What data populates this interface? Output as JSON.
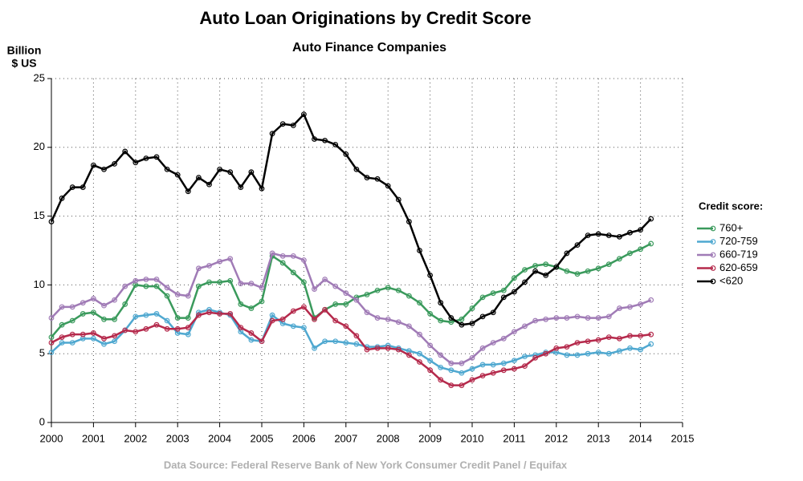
{
  "chart_data": {
    "type": "line",
    "title": "Auto Loan Originations by Credit Score",
    "subtitle": "Auto Finance Companies",
    "y_label": [
      "Billion",
      "$ US"
    ],
    "source": "Data Source: Federal Reserve Bank of New York Consumer Credit Panel / Equifax",
    "legend_title": "Credit score:",
    "legend": "right",
    "grid": true,
    "x": [
      2000,
      2000.25,
      2000.5,
      2000.75,
      2001,
      2001.25,
      2001.5,
      2001.75,
      2002,
      2002.25,
      2002.5,
      2002.75,
      2003,
      2003.25,
      2003.5,
      2003.75,
      2004,
      2004.25,
      2004.5,
      2004.75,
      2005,
      2005.25,
      2005.5,
      2005.75,
      2006,
      2006.25,
      2006.5,
      2006.75,
      2007,
      2007.25,
      2007.5,
      2007.75,
      2008,
      2008.25,
      2008.5,
      2008.75,
      2009,
      2009.25,
      2009.5,
      2009.75,
      2010,
      2010.25,
      2010.5,
      2010.75,
      2011,
      2011.25,
      2011.5,
      2011.75,
      2012,
      2012.25,
      2012.5,
      2012.75,
      2013,
      2013.25,
      2013.5,
      2013.75,
      2014,
      2014.25
    ],
    "xlim": [
      2000,
      2015
    ],
    "xticks": [
      2000,
      2001,
      2002,
      2003,
      2004,
      2005,
      2006,
      2007,
      2008,
      2009,
      2010,
      2011,
      2012,
      2013,
      2014,
      2015
    ],
    "ylim": [
      0,
      25
    ],
    "yticks": [
      0,
      5,
      10,
      15,
      20,
      25
    ],
    "series": [
      {
        "name": "760+",
        "color": "#3a9a5c",
        "values": [
          6.2,
          7.1,
          7.4,
          7.9,
          8.0,
          7.5,
          7.5,
          8.6,
          10.0,
          9.9,
          9.9,
          9.2,
          7.6,
          7.6,
          9.9,
          10.2,
          10.2,
          10.3,
          8.6,
          8.3,
          8.8,
          12.1,
          11.6,
          10.9,
          10.2,
          7.6,
          8.2,
          8.6,
          8.6,
          9.1,
          9.3,
          9.6,
          9.8,
          9.6,
          9.2,
          8.7,
          7.9,
          7.4,
          7.3,
          7.5,
          8.3,
          9.1,
          9.4,
          9.6,
          10.5,
          11.1,
          11.4,
          11.5,
          11.3,
          11.0,
          10.8,
          11.0,
          11.2,
          11.5,
          11.9,
          12.3,
          12.6,
          13.0
        ]
      },
      {
        "name": "720-759",
        "color": "#4fa8d0",
        "values": [
          5.1,
          5.8,
          5.8,
          6.1,
          6.1,
          5.7,
          5.9,
          6.7,
          7.7,
          7.8,
          7.9,
          7.4,
          6.5,
          6.4,
          8.0,
          8.2,
          8.0,
          7.8,
          6.6,
          6.0,
          5.9,
          7.8,
          7.2,
          7.0,
          6.9,
          5.4,
          5.9,
          5.9,
          5.8,
          5.7,
          5.5,
          5.5,
          5.6,
          5.4,
          5.2,
          5.0,
          4.5,
          4.0,
          3.8,
          3.6,
          3.9,
          4.2,
          4.2,
          4.3,
          4.5,
          4.8,
          4.9,
          5.1,
          5.1,
          4.9,
          4.9,
          5.0,
          5.1,
          5.0,
          5.2,
          5.4,
          5.3,
          5.7
        ]
      },
      {
        "name": "660-719",
        "color": "#a07bb6",
        "values": [
          7.6,
          8.4,
          8.4,
          8.7,
          9.0,
          8.5,
          8.9,
          9.9,
          10.3,
          10.4,
          10.4,
          9.8,
          9.3,
          9.2,
          11.2,
          11.4,
          11.7,
          11.9,
          10.1,
          10.1,
          9.8,
          12.3,
          12.1,
          12.1,
          11.8,
          9.7,
          10.4,
          9.9,
          9.4,
          8.9,
          8.0,
          7.6,
          7.5,
          7.3,
          7.0,
          6.4,
          5.6,
          4.9,
          4.3,
          4.3,
          4.7,
          5.4,
          5.8,
          6.1,
          6.6,
          7.0,
          7.4,
          7.5,
          7.6,
          7.6,
          7.7,
          7.6,
          7.6,
          7.7,
          8.3,
          8.4,
          8.6,
          8.9
        ]
      },
      {
        "name": "620-659",
        "color": "#b52a4c",
        "values": [
          5.8,
          6.2,
          6.4,
          6.4,
          6.5,
          6.1,
          6.3,
          6.7,
          6.6,
          6.8,
          7.1,
          6.8,
          6.8,
          6.9,
          7.8,
          8.0,
          7.9,
          7.9,
          6.9,
          6.5,
          5.9,
          7.4,
          7.5,
          8.1,
          8.4,
          7.5,
          8.2,
          7.4,
          7.0,
          6.3,
          5.3,
          5.4,
          5.4,
          5.3,
          4.9,
          4.4,
          3.8,
          3.1,
          2.7,
          2.7,
          3.1,
          3.4,
          3.6,
          3.8,
          3.9,
          4.1,
          4.7,
          5.0,
          5.4,
          5.5,
          5.8,
          5.9,
          6.0,
          6.2,
          6.1,
          6.3,
          6.3,
          6.4
        ]
      },
      {
        "name": "<620",
        "color": "#000000",
        "values": [
          14.6,
          16.3,
          17.1,
          17.1,
          18.7,
          18.4,
          18.8,
          19.7,
          18.9,
          19.2,
          19.3,
          18.4,
          18.0,
          16.8,
          17.8,
          17.3,
          18.4,
          18.2,
          17.1,
          18.2,
          17.0,
          21.0,
          21.7,
          21.6,
          22.4,
          20.6,
          20.5,
          20.2,
          19.5,
          18.4,
          17.8,
          17.7,
          17.2,
          16.2,
          14.6,
          12.5,
          10.7,
          8.7,
          7.6,
          7.1,
          7.2,
          7.7,
          8.0,
          9.1,
          9.5,
          10.2,
          11.0,
          10.7,
          11.3,
          12.3,
          12.9,
          13.6,
          13.7,
          13.6,
          13.5,
          13.8,
          14.0,
          14.8
        ]
      }
    ]
  }
}
